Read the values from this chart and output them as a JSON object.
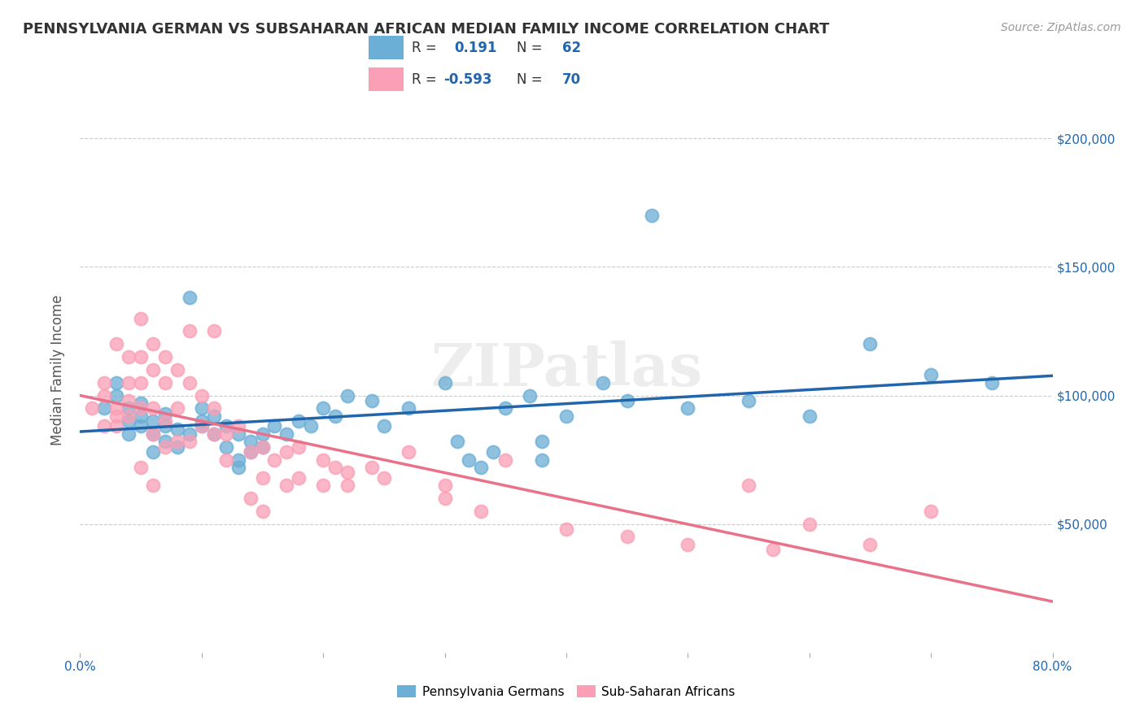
{
  "title": "PENNSYLVANIA GERMAN VS SUBSAHARAN AFRICAN MEDIAN FAMILY INCOME CORRELATION CHART",
  "source": "Source: ZipAtlas.com",
  "ylabel": "Median Family Income",
  "ytick_labels": [
    "$50,000",
    "$100,000",
    "$150,000",
    "$200,000"
  ],
  "ytick_values": [
    50000,
    100000,
    150000,
    200000
  ],
  "ylim": [
    0,
    220000
  ],
  "xlim": [
    0.0,
    0.8
  ],
  "color_blue": "#6baed6",
  "color_pink": "#fa9fb5",
  "line_blue": "#2166ac",
  "line_pink": "#e8728a",
  "background_color": "#ffffff",
  "watermark": "ZIPatlas",
  "blue_scatter": [
    [
      0.02,
      95000
    ],
    [
      0.03,
      100000
    ],
    [
      0.03,
      105000
    ],
    [
      0.04,
      85000
    ],
    [
      0.04,
      90000
    ],
    [
      0.04,
      95000
    ],
    [
      0.05,
      88000
    ],
    [
      0.05,
      92000
    ],
    [
      0.05,
      97000
    ],
    [
      0.06,
      85000
    ],
    [
      0.06,
      90000
    ],
    [
      0.06,
      78000
    ],
    [
      0.07,
      82000
    ],
    [
      0.07,
      88000
    ],
    [
      0.07,
      93000
    ],
    [
      0.08,
      80000
    ],
    [
      0.08,
      87000
    ],
    [
      0.09,
      85000
    ],
    [
      0.09,
      138000
    ],
    [
      0.1,
      90000
    ],
    [
      0.1,
      95000
    ],
    [
      0.1,
      88000
    ],
    [
      0.11,
      85000
    ],
    [
      0.11,
      92000
    ],
    [
      0.12,
      88000
    ],
    [
      0.12,
      80000
    ],
    [
      0.13,
      85000
    ],
    [
      0.13,
      75000
    ],
    [
      0.13,
      72000
    ],
    [
      0.14,
      82000
    ],
    [
      0.14,
      78000
    ],
    [
      0.15,
      80000
    ],
    [
      0.15,
      85000
    ],
    [
      0.16,
      88000
    ],
    [
      0.17,
      85000
    ],
    [
      0.18,
      90000
    ],
    [
      0.19,
      88000
    ],
    [
      0.2,
      95000
    ],
    [
      0.21,
      92000
    ],
    [
      0.22,
      100000
    ],
    [
      0.24,
      98000
    ],
    [
      0.25,
      88000
    ],
    [
      0.27,
      95000
    ],
    [
      0.3,
      105000
    ],
    [
      0.31,
      82000
    ],
    [
      0.32,
      75000
    ],
    [
      0.33,
      72000
    ],
    [
      0.34,
      78000
    ],
    [
      0.35,
      95000
    ],
    [
      0.37,
      100000
    ],
    [
      0.38,
      82000
    ],
    [
      0.38,
      75000
    ],
    [
      0.4,
      92000
    ],
    [
      0.43,
      105000
    ],
    [
      0.45,
      98000
    ],
    [
      0.47,
      170000
    ],
    [
      0.5,
      95000
    ],
    [
      0.55,
      98000
    ],
    [
      0.6,
      92000
    ],
    [
      0.65,
      120000
    ],
    [
      0.7,
      108000
    ],
    [
      0.75,
      105000
    ]
  ],
  "pink_scatter": [
    [
      0.01,
      95000
    ],
    [
      0.02,
      100000
    ],
    [
      0.02,
      105000
    ],
    [
      0.02,
      88000
    ],
    [
      0.03,
      120000
    ],
    [
      0.03,
      95000
    ],
    [
      0.03,
      92000
    ],
    [
      0.03,
      88000
    ],
    [
      0.04,
      115000
    ],
    [
      0.04,
      105000
    ],
    [
      0.04,
      98000
    ],
    [
      0.04,
      92000
    ],
    [
      0.05,
      130000
    ],
    [
      0.05,
      115000
    ],
    [
      0.05,
      105000
    ],
    [
      0.05,
      95000
    ],
    [
      0.05,
      72000
    ],
    [
      0.06,
      120000
    ],
    [
      0.06,
      110000
    ],
    [
      0.06,
      95000
    ],
    [
      0.06,
      85000
    ],
    [
      0.06,
      65000
    ],
    [
      0.07,
      115000
    ],
    [
      0.07,
      105000
    ],
    [
      0.07,
      90000
    ],
    [
      0.07,
      80000
    ],
    [
      0.08,
      110000
    ],
    [
      0.08,
      95000
    ],
    [
      0.08,
      82000
    ],
    [
      0.09,
      125000
    ],
    [
      0.09,
      105000
    ],
    [
      0.09,
      82000
    ],
    [
      0.1,
      100000
    ],
    [
      0.1,
      88000
    ],
    [
      0.11,
      125000
    ],
    [
      0.11,
      95000
    ],
    [
      0.11,
      85000
    ],
    [
      0.12,
      85000
    ],
    [
      0.12,
      75000
    ],
    [
      0.13,
      88000
    ],
    [
      0.14,
      78000
    ],
    [
      0.14,
      60000
    ],
    [
      0.15,
      80000
    ],
    [
      0.15,
      68000
    ],
    [
      0.15,
      55000
    ],
    [
      0.16,
      75000
    ],
    [
      0.17,
      78000
    ],
    [
      0.17,
      65000
    ],
    [
      0.18,
      80000
    ],
    [
      0.18,
      68000
    ],
    [
      0.2,
      75000
    ],
    [
      0.2,
      65000
    ],
    [
      0.21,
      72000
    ],
    [
      0.22,
      70000
    ],
    [
      0.22,
      65000
    ],
    [
      0.24,
      72000
    ],
    [
      0.25,
      68000
    ],
    [
      0.27,
      78000
    ],
    [
      0.3,
      65000
    ],
    [
      0.3,
      60000
    ],
    [
      0.33,
      55000
    ],
    [
      0.35,
      75000
    ],
    [
      0.4,
      48000
    ],
    [
      0.45,
      45000
    ],
    [
      0.5,
      42000
    ],
    [
      0.55,
      65000
    ],
    [
      0.57,
      40000
    ],
    [
      0.6,
      50000
    ],
    [
      0.65,
      42000
    ],
    [
      0.7,
      55000
    ]
  ]
}
